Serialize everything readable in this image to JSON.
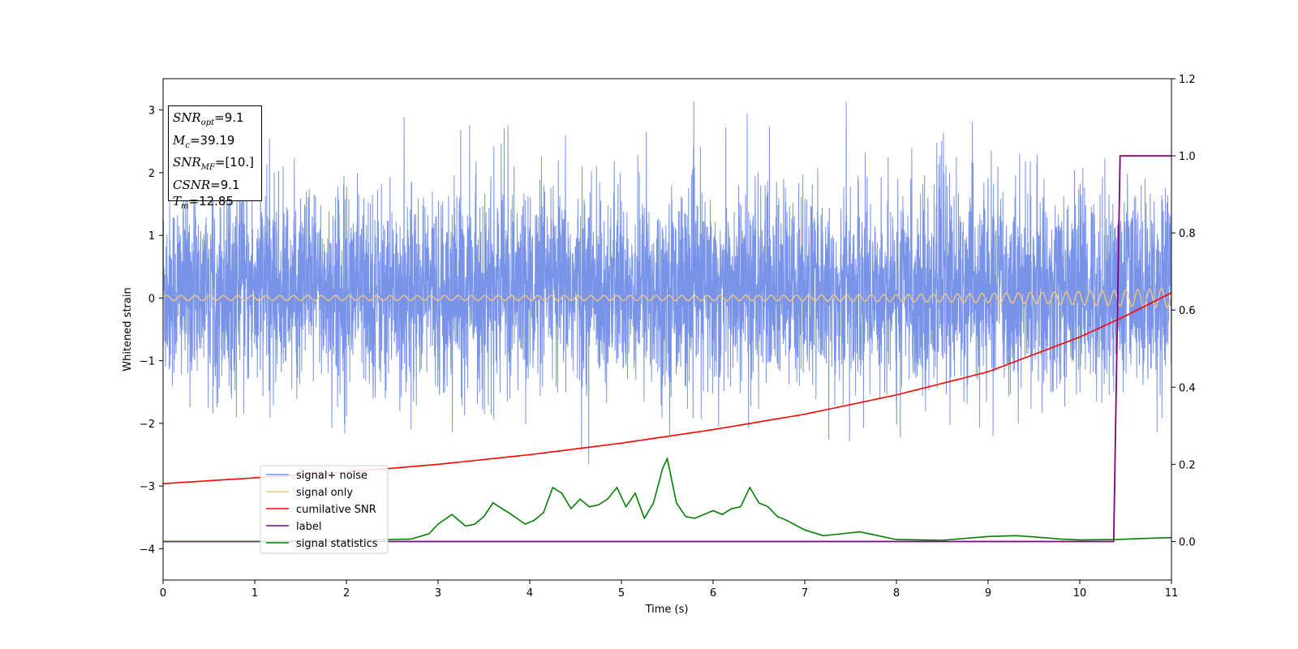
{
  "chart_data": {
    "type": "line",
    "title": "",
    "xlabel": "Time (s)",
    "ylabel": "Whitened strain",
    "xlim": [
      0,
      11
    ],
    "ylim": [
      -4.5,
      3.5
    ],
    "y2lim": [
      -0.1,
      1.2
    ],
    "xticks": [
      "0",
      "1",
      "2",
      "3",
      "4",
      "5",
      "6",
      "7",
      "8",
      "9",
      "10",
      "11"
    ],
    "yticks": [
      "−4",
      "−3",
      "−2",
      "−1",
      "0",
      "1",
      "2",
      "3"
    ],
    "y2ticks": [
      "0.0",
      "0.2",
      "0.4",
      "0.6",
      "0.8",
      "1.0",
      "1.2"
    ],
    "grid": false,
    "legend_position": "lower-left",
    "colors": {
      "signal_noise": "#7893e8",
      "signal_only": "#f5c77a",
      "cumulative_snr": "#ff0000",
      "label": "#800080",
      "signal_statistics": "#008000"
    },
    "series": [
      {
        "name": "signal+ noise",
        "axis": "left",
        "description_values": "noise band roughly between -2.3 and 2.5 with spikes to ~3.1"
      },
      {
        "name": "signal only",
        "axis": "left"
      },
      {
        "name": "cumilative SNR",
        "axis": "right",
        "x": [
          0,
          1,
          2,
          3,
          4,
          5,
          6,
          7,
          8,
          9,
          10,
          10.5,
          11
        ],
        "y": [
          0.15,
          0.165,
          0.18,
          0.2,
          0.225,
          0.255,
          0.29,
          0.33,
          0.38,
          0.44,
          0.53,
          0.585,
          0.645
        ]
      },
      {
        "name": "label",
        "axis": "right",
        "x": [
          0,
          10.37,
          10.44,
          11
        ],
        "y": [
          0.0,
          0.0,
          1.0,
          1.0
        ]
      },
      {
        "name": "signal statistics",
        "axis": "right",
        "x": [
          0,
          1,
          2,
          2.7,
          2.9,
          3.0,
          3.15,
          3.3,
          3.4,
          3.5,
          3.6,
          3.7,
          3.8,
          3.95,
          4.05,
          4.15,
          4.25,
          4.35,
          4.45,
          4.55,
          4.65,
          4.75,
          4.85,
          4.95,
          5.05,
          5.15,
          5.25,
          5.35,
          5.45,
          5.5,
          5.6,
          5.7,
          5.8,
          5.9,
          6.0,
          6.1,
          6.2,
          6.3,
          6.4,
          6.5,
          6.6,
          6.7,
          6.8,
          7.0,
          7.2,
          7.4,
          7.6,
          7.8,
          8.0,
          8.5,
          9.0,
          9.3,
          9.5,
          9.8,
          10.0,
          10.4,
          10.6,
          11
        ],
        "y": [
          0.0,
          0.0,
          0.003,
          0.006,
          0.02,
          0.045,
          0.07,
          0.04,
          0.045,
          0.065,
          0.1,
          0.085,
          0.07,
          0.045,
          0.055,
          0.075,
          0.14,
          0.125,
          0.085,
          0.11,
          0.09,
          0.095,
          0.11,
          0.14,
          0.09,
          0.125,
          0.06,
          0.1,
          0.19,
          0.215,
          0.1,
          0.065,
          0.06,
          0.07,
          0.08,
          0.07,
          0.085,
          0.09,
          0.14,
          0.1,
          0.09,
          0.065,
          0.055,
          0.03,
          0.015,
          0.02,
          0.025,
          0.015,
          0.005,
          0.003,
          0.013,
          0.015,
          0.012,
          0.006,
          0.004,
          0.005,
          0.007,
          0.01
        ]
      }
    ],
    "annotations": {
      "snr_opt": {
        "label": "SNR",
        "sub": "opt",
        "value": "=9.1"
      },
      "mc": {
        "label": "M",
        "sub": "c",
        "value": "=39.19"
      },
      "snr_mf": {
        "label": "SNR",
        "sub": "MF",
        "value": "=[10.]"
      },
      "csnr": {
        "label": "CSNR",
        "value": "=9.1"
      },
      "tm": {
        "label": "T",
        "sub": "m",
        "value": "=12.85"
      }
    }
  }
}
